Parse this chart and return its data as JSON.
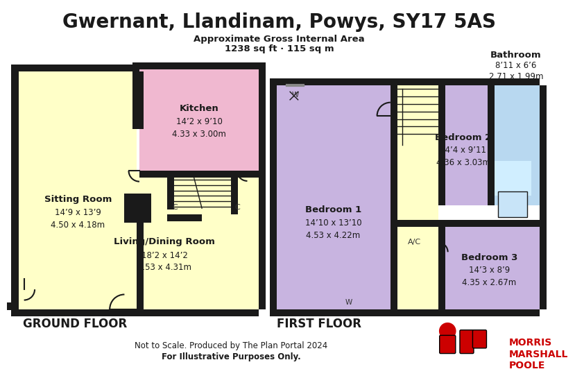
{
  "title": "Gwernant, Llandinam, Powys, SY17 5AS",
  "subtitle1": "Approximate Gross Internal Area",
  "subtitle2": "1238 sq ft · 115 sq m",
  "ground_floor_label": "GROUND FLOOR",
  "first_floor_label": "FIRST FLOOR",
  "footer1": "Not to Scale. Produced by The Plan Portal 2024",
  "footer2": "For Illustrative Purposes Only.",
  "bg_color": "#ffffff",
  "wall_color": "#1a1a1a",
  "colors": {
    "yellow": "#ffffc8",
    "pink": "#f0b8d0",
    "purple": "#c8b4e0",
    "blue": "#b8d8f0"
  },
  "brand_color": "#cc0000",
  "brand_text": [
    "MORRIS",
    "MARSHALL",
    "POOLE"
  ],
  "rooms": {
    "sitting_room": {
      "label": "Sitting Room",
      "dim1": "14’9 x 13’9",
      "dim2": "4.50 x 4.18m"
    },
    "living_dining": {
      "label": "Living/Dining Room",
      "dim1": "18’2 x 14’2",
      "dim2": "5.53 x 4.31m"
    },
    "kitchen": {
      "label": "Kitchen",
      "dim1": "14’2 x 9’10",
      "dim2": "4.33 x 3.00m"
    },
    "bedroom1": {
      "label": "Bedroom 1",
      "dim1": "14’10 x 13’10",
      "dim2": "4.53 x 4.22m"
    },
    "bedroom2": {
      "label": "Bedroom 2",
      "dim1": "14’4 x 9’11",
      "dim2": "4.36 x 3.03m"
    },
    "bedroom3": {
      "label": "Bedroom 3",
      "dim1": "14’3 x 8’9",
      "dim2": "4.35 x 2.67m"
    },
    "bathroom": {
      "label": "Bathroom",
      "dim1": "8’11 x 6’6",
      "dim2": "2.71 x 1.99m"
    }
  }
}
